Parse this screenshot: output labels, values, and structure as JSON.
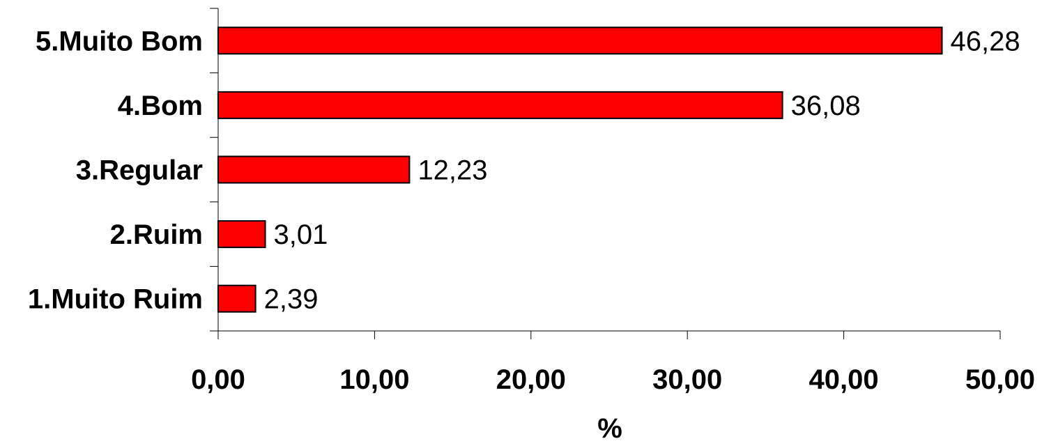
{
  "chart_data": {
    "type": "bar",
    "orientation": "horizontal",
    "categories": [
      "1.Muito Ruim",
      "2.Ruim",
      "3.Regular",
      "4.Bom",
      "5.Muito Bom"
    ],
    "values": [
      2.39,
      3.01,
      12.23,
      36.08,
      46.28
    ],
    "data_labels": [
      "2,39",
      "3,01",
      "12,23",
      "36,08",
      "46,28"
    ],
    "x_ticks": [
      "0,00",
      "10,00",
      "20,00",
      "30,00",
      "40,00",
      "50,00"
    ],
    "xlim": [
      0,
      50
    ],
    "xlabel": "%",
    "ylabel": "",
    "title": "",
    "grid": false,
    "legend": "none",
    "bar_color": "#FF0000",
    "bar_edge_color": "#000000"
  }
}
